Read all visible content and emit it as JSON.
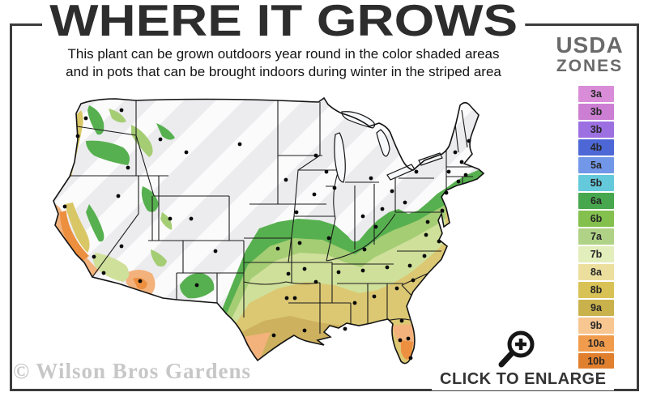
{
  "frame": {
    "border_color": "#3c3c3c"
  },
  "header": {
    "title": "WHERE IT GROWS",
    "subtitle_line1": "This plant can be grown outdoors year round in the color shaded areas",
    "subtitle_line2": "and in pots that can be brought indoors during winter in the striped area"
  },
  "legend": {
    "title_line1": "USDA",
    "title_line2": "ZONES",
    "zones": [
      {
        "label": "3a",
        "color": "#d98dd8"
      },
      {
        "label": "3b",
        "color": "#cb7ed2"
      },
      {
        "label": "3b",
        "color": "#9d70e2"
      },
      {
        "label": "4b",
        "color": "#4d68d6"
      },
      {
        "label": "5a",
        "color": "#7297e8"
      },
      {
        "label": "5b",
        "color": "#64c9da"
      },
      {
        "label": "6a",
        "color": "#47a74e"
      },
      {
        "label": "6b",
        "color": "#84c04e"
      },
      {
        "label": "7a",
        "color": "#b0d287"
      },
      {
        "label": "7b",
        "color": "#e2eebb"
      },
      {
        "label": "8a",
        "color": "#ecdf9e"
      },
      {
        "label": "8b",
        "color": "#d8c255"
      },
      {
        "label": "9a",
        "color": "#c9b14c"
      },
      {
        "label": "9b",
        "color": "#f8c690"
      },
      {
        "label": "10a",
        "color": "#f19c4d"
      },
      {
        "label": "10b",
        "color": "#e07f2e"
      }
    ]
  },
  "map": {
    "watermark": "© Wilson Bros Gardens",
    "colors": {
      "base": "#ececef",
      "stripe": "#fbfbfc",
      "green": "#57b04f",
      "light_green": "#a5cd74",
      "pale_green": "#cfe09a",
      "khaki": "#dcc873",
      "gold": "#cdb15e",
      "peach": "#f3b27c",
      "orange": "#ec8f3f",
      "coast_yellow": "#d9c765",
      "lake": "#f7f8fa",
      "outline": "#141414",
      "state_line": "#1c1c1c",
      "city_dot": "#0a0a0a"
    }
  },
  "footer": {
    "enlarge_label": "CLICK TO ENLARGE"
  }
}
